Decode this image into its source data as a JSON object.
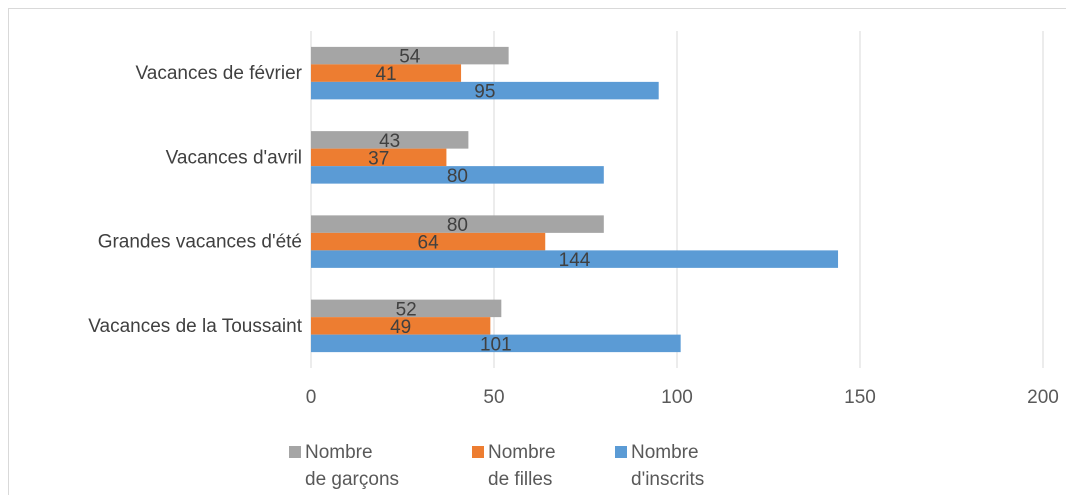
{
  "chart_data": {
    "type": "bar",
    "orientation": "horizontal",
    "categories": [
      "Vacances de la Toussaint",
      "Grandes vacances d'été",
      "Vacances d'avril",
      "Vacances de février"
    ],
    "series": [
      {
        "name": "Nombre de garçons",
        "values": [
          52,
          80,
          43,
          54
        ],
        "color": "#a5a5a5"
      },
      {
        "name": "Nombre de filles",
        "values": [
          49,
          64,
          37,
          41
        ],
        "color": "#ed7d31"
      },
      {
        "name": "Nombre d'inscrits",
        "values": [
          101,
          144,
          80,
          95
        ],
        "color": "#5b9bd5"
      }
    ],
    "xlim": [
      0,
      200
    ],
    "x_ticks": [
      "0",
      "50",
      "100",
      "150",
      "200"
    ],
    "grid": true,
    "data_labels": true,
    "legend_position": "bottom",
    "legend_entries": [
      {
        "line1": "Nombre",
        "line2": "de garçons"
      },
      {
        "line1": "Nombre",
        "line2": "de filles"
      },
      {
        "line1": "Nombre",
        "line2": "d'inscrits"
      }
    ]
  }
}
